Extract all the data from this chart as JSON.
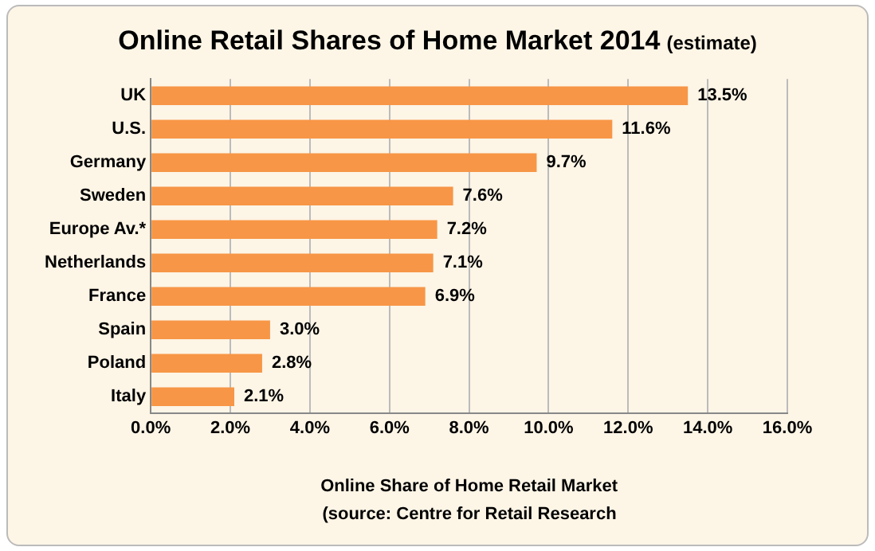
{
  "chart_data": {
    "type": "bar",
    "orientation": "horizontal",
    "title": "Online Retail Shares of Home Market 2014",
    "subtitle": "(estimate)",
    "xlabel": "Online Share of Home Retail Market",
    "annotations": [
      "(source: Centre for Retail Research"
    ],
    "categories": [
      "UK",
      "U.S.",
      "Germany",
      "Sweden",
      "Europe Av.*",
      "Netherlands",
      "France",
      "Spain",
      "Poland",
      "Italy"
    ],
    "values": [
      13.5,
      11.6,
      9.7,
      7.6,
      7.2,
      7.1,
      6.9,
      3.0,
      2.8,
      2.1
    ],
    "value_labels": [
      "13.5%",
      "11.6%",
      "9.7%",
      "7.6%",
      "7.2%",
      "7.1%",
      "6.9%",
      "3.0%",
      "2.8%",
      "2.1%"
    ],
    "color": "#f79646",
    "xlim": [
      0,
      16
    ],
    "xticks": [
      {
        "value": 0,
        "label": "0.0%"
      },
      {
        "value": 2,
        "label": "2.0%"
      },
      {
        "value": 4,
        "label": "4.0%"
      },
      {
        "value": 6,
        "label": "6.0%"
      },
      {
        "value": 8,
        "label": "8.0%"
      },
      {
        "value": 10,
        "label": "10.0%"
      },
      {
        "value": 12,
        "label": "12.0%"
      },
      {
        "value": 14,
        "label": "14.0%"
      },
      {
        "value": 16,
        "label": "16.0%"
      }
    ],
    "grid": "x",
    "legend": false
  }
}
